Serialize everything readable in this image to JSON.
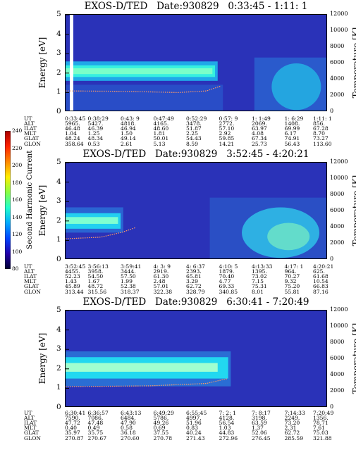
{
  "colorbar": {
    "label": "Second Harmonic Current",
    "ticks": [
      "240",
      "220",
      "200",
      "180",
      "160",
      "140",
      "120",
      "100",
      "80"
    ],
    "colors": [
      "#aa0000",
      "#ff2200",
      "#ff8800",
      "#ffee00",
      "#88ff44",
      "#22ffcc",
      "#00aaff",
      "#0044ff",
      "#2200aa",
      "#000033"
    ]
  },
  "rows": [
    "UT",
    "ALT",
    "ILAT",
    "MLT",
    "GLAT",
    "GLON"
  ],
  "chart_data": [
    {
      "type": "heatmap",
      "title": "EXOS-D/TED   Date:930829   0:33:45 - 1:11: 1",
      "ylabel": "Energy [eV]",
      "ylim": [
        0,
        5
      ],
      "yticks": [
        "5",
        "4",
        "3",
        "2",
        "1",
        "0"
      ],
      "y2label": "Temperature [K]",
      "y2lim": [
        0,
        12000
      ],
      "y2ticks": [
        "12000",
        "10000",
        "8000",
        "6000",
        "4000",
        "2000",
        "0"
      ],
      "x": [
        [
          "0:33:45",
          "5965.",
          "46.48",
          "1.04",
          "48.24",
          "358.64"
        ],
        [
          "0:38:29",
          "5427.",
          "46.39",
          "1.25",
          "48.34",
          "0.53"
        ],
        [
          "0:43: 9",
          "4818.",
          "46.94",
          "1.50",
          "49.14",
          "2.61"
        ],
        [
          "0:47:49",
          "4165.",
          "48.60",
          "1.81",
          "50.01",
          "5.13"
        ],
        [
          "0:52:29",
          "3478.",
          "51.87",
          "2.25",
          "54.43",
          "8.59"
        ],
        [
          "0:57: 9",
          "2772.",
          "57.10",
          "2.92",
          "59.85",
          "14.21"
        ],
        [
          "1: 1:49",
          "2069.",
          "63.97",
          "4.08",
          "67.34",
          "25.73"
        ],
        [
          "1: 6:29",
          "1408.",
          "69.99",
          "6.17",
          "74.91",
          "56.43"
        ],
        [
          "1:11: 1",
          "856.",
          "67.28",
          "8.70",
          "73.27",
          "113.60"
        ]
      ]
    },
    {
      "type": "heatmap",
      "title": "EXOS-D/TED   Date:930829   3:52:45 - 4:20:21",
      "ylabel": "Energy [eV]",
      "ylim": [
        0,
        5
      ],
      "yticks": [
        "5",
        "4",
        "3",
        "2",
        "1",
        "0"
      ],
      "y2label": "Temperature [K]",
      "y2lim": [
        0,
        12000
      ],
      "y2ticks": [
        "12000",
        "10000",
        "8000",
        "6000",
        "4000",
        "2000",
        "0"
      ],
      "x": [
        [
          "3:52:45",
          "4455.",
          "52.23",
          "1.43",
          "45.89",
          "313.44"
        ],
        [
          "3:56:13",
          "3958.",
          "54.50",
          "1.67",
          "48.72",
          "315.56"
        ],
        [
          "3:59:41",
          "3444.",
          "57.50",
          "1.99",
          "52.38",
          "318.37"
        ],
        [
          "4: 3: 9",
          "2919.",
          "61.30",
          "2.48",
          "57.01",
          "322.38"
        ],
        [
          "4: 6:37",
          "2393.",
          "65.81",
          "3.29",
          "62.72",
          "328.79"
        ],
        [
          "4:10: 5",
          "1879.",
          "70.40",
          "4.77",
          "69.33",
          "340.85"
        ],
        [
          "4:13:33",
          "1395.",
          "73.02",
          "7.15",
          "75.31",
          "8.01"
        ],
        [
          "4:17: 1",
          "964.",
          "70.27",
          "9.32",
          "75.20",
          "55.81"
        ],
        [
          "4:20:21",
          "625.",
          "61.68",
          "10.54",
          "66.83",
          "87.16"
        ]
      ]
    },
    {
      "type": "heatmap",
      "title": "EXOS-D/TED   Date:930829   6:30:41 - 7:20:49",
      "ylabel": "Energy [eV]",
      "ylim": [
        0,
        5
      ],
      "yticks": [
        "5",
        "4",
        "3",
        "2",
        "1",
        "0"
      ],
      "y2label": "Temperature [K]",
      "y2lim": [
        0,
        12000
      ],
      "y2ticks": [
        "12000",
        "10000",
        "8000",
        "6000",
        "4000",
        "2000",
        "0"
      ],
      "x": [
        [
          "6:30:41",
          "7590.",
          "47.72",
          "0.40",
          "35.97",
          "270.87"
        ],
        [
          "6:36:57",
          "7086.",
          "47.48",
          "0.49",
          "35.75",
          "270.67"
        ],
        [
          "6:43:13",
          "6484.",
          "47.90",
          "0.58",
          "36.18",
          "270.60"
        ],
        [
          "6:49:29",
          "5786.",
          "49.26",
          "0.69",
          "37.55",
          "270.78"
        ],
        [
          "6:55:45",
          "4997.",
          "51.96",
          "0.83",
          "40.24",
          "271.43"
        ],
        [
          "7: 2: 1",
          "4128.",
          "56.54",
          "1.03",
          "44.83",
          "272.96"
        ],
        [
          "7: 8:17",
          "3198.",
          "63.59",
          "1.37",
          "52.06",
          "276.45"
        ],
        [
          "7:14:33",
          "2249.",
          "73.20",
          "2.31",
          "62.72",
          "285.59"
        ],
        [
          "7:20:49",
          "1356.",
          "78.71",
          "7.61",
          "75.03",
          "321.88"
        ]
      ]
    }
  ]
}
